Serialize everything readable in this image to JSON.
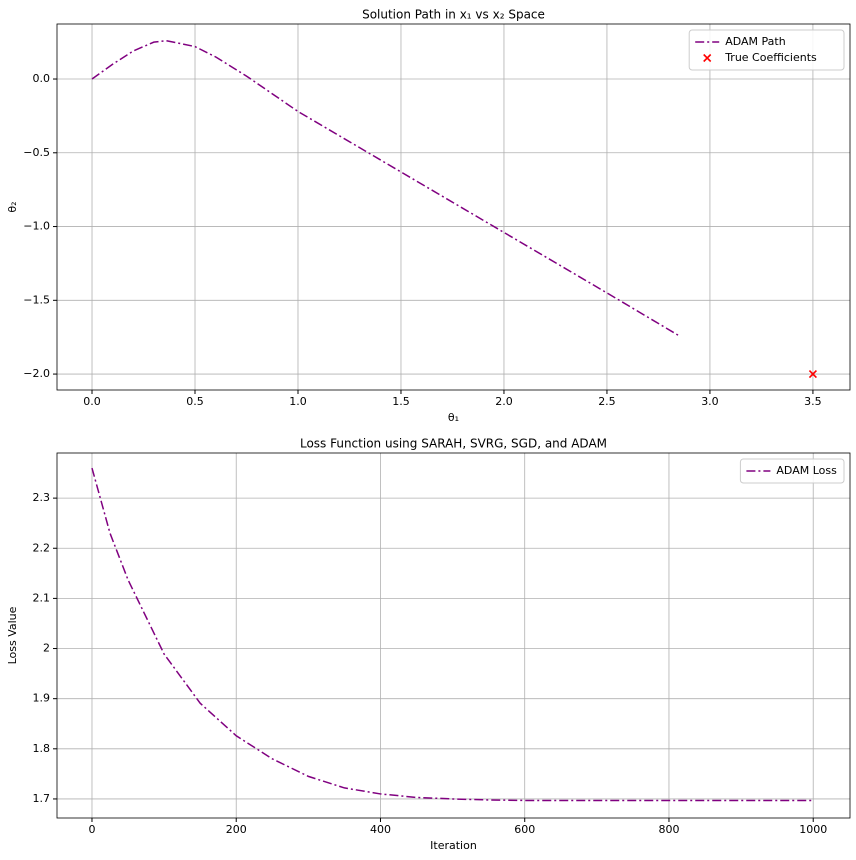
{
  "chart_data": [
    {
      "type": "line",
      "title": "Solution Path in x₁ vs x₂ Space",
      "x_label": "θ₁",
      "y_label": "θ₂",
      "xlim": [
        -0.17,
        3.68
      ],
      "ylim": [
        -2.108,
        0.373
      ],
      "grid": true,
      "legend": "upper right",
      "xticks": [
        {
          "value": 0,
          "label": "0.0"
        },
        {
          "value": 0.5,
          "label": "0.5"
        },
        {
          "value": 1,
          "label": "1.0"
        },
        {
          "value": 1.5,
          "label": "1.5"
        },
        {
          "value": 2,
          "label": "2.0"
        },
        {
          "value": 2.5,
          "label": "2.5"
        },
        {
          "value": 3,
          "label": "3.0"
        },
        {
          "value": 3.5,
          "label": "3.5"
        }
      ],
      "yticks": [
        {
          "value": -2,
          "label": "−2.0"
        },
        {
          "value": -1.5,
          "label": "−1.5"
        },
        {
          "value": -1,
          "label": "−1.0"
        },
        {
          "value": -0.5,
          "label": "−0.5"
        },
        {
          "value": 0,
          "label": "0.0"
        }
      ],
      "series": [
        {
          "name": "ADAM Path",
          "kind": "line",
          "style": "dashdot",
          "color": "#800080",
          "x": [
            0,
            0.1,
            0.2,
            0.3,
            0.36,
            0.5,
            0.6,
            0.75,
            1.0,
            1.5,
            2.0,
            2.5,
            2.85
          ],
          "values": [
            0,
            0.1,
            0.19,
            0.25,
            0.26,
            0.22,
            0.15,
            0.02,
            -0.22,
            -0.63,
            -1.04,
            -1.45,
            -1.74
          ]
        },
        {
          "name": "True Coefficients",
          "kind": "scatter",
          "color": "#ff0000",
          "x": [
            3.5
          ],
          "values": [
            -2.0
          ]
        }
      ]
    },
    {
      "type": "line",
      "title": "Loss Function using SARAH, SVRG, SGD, and ADAM",
      "x_label": "Iteration",
      "y_label": "Loss Value",
      "xlim": [
        -48.5,
        1051
      ],
      "ylim": [
        1.662,
        2.39
      ],
      "grid": true,
      "legend": "upper right",
      "xticks": [
        0,
        200,
        400,
        600,
        800,
        1000
      ],
      "yticks": [
        1.7,
        1.8,
        1.9,
        2.0,
        2.1,
        2.2,
        2.3
      ],
      "series": [
        {
          "name": "ADAM Loss",
          "kind": "line",
          "style": "dashdot",
          "color": "#800080",
          "x": [
            0,
            25,
            50,
            100,
            150,
            200,
            250,
            300,
            350,
            400,
            450,
            500,
            550,
            600,
            700,
            800,
            900,
            1000
          ],
          "values": [
            2.36,
            2.23,
            2.137,
            1.989,
            1.891,
            1.826,
            1.78,
            1.745,
            1.722,
            1.71,
            1.703,
            1.7,
            1.698,
            1.697,
            1.697,
            1.697,
            1.697,
            1.697
          ]
        }
      ]
    }
  ]
}
